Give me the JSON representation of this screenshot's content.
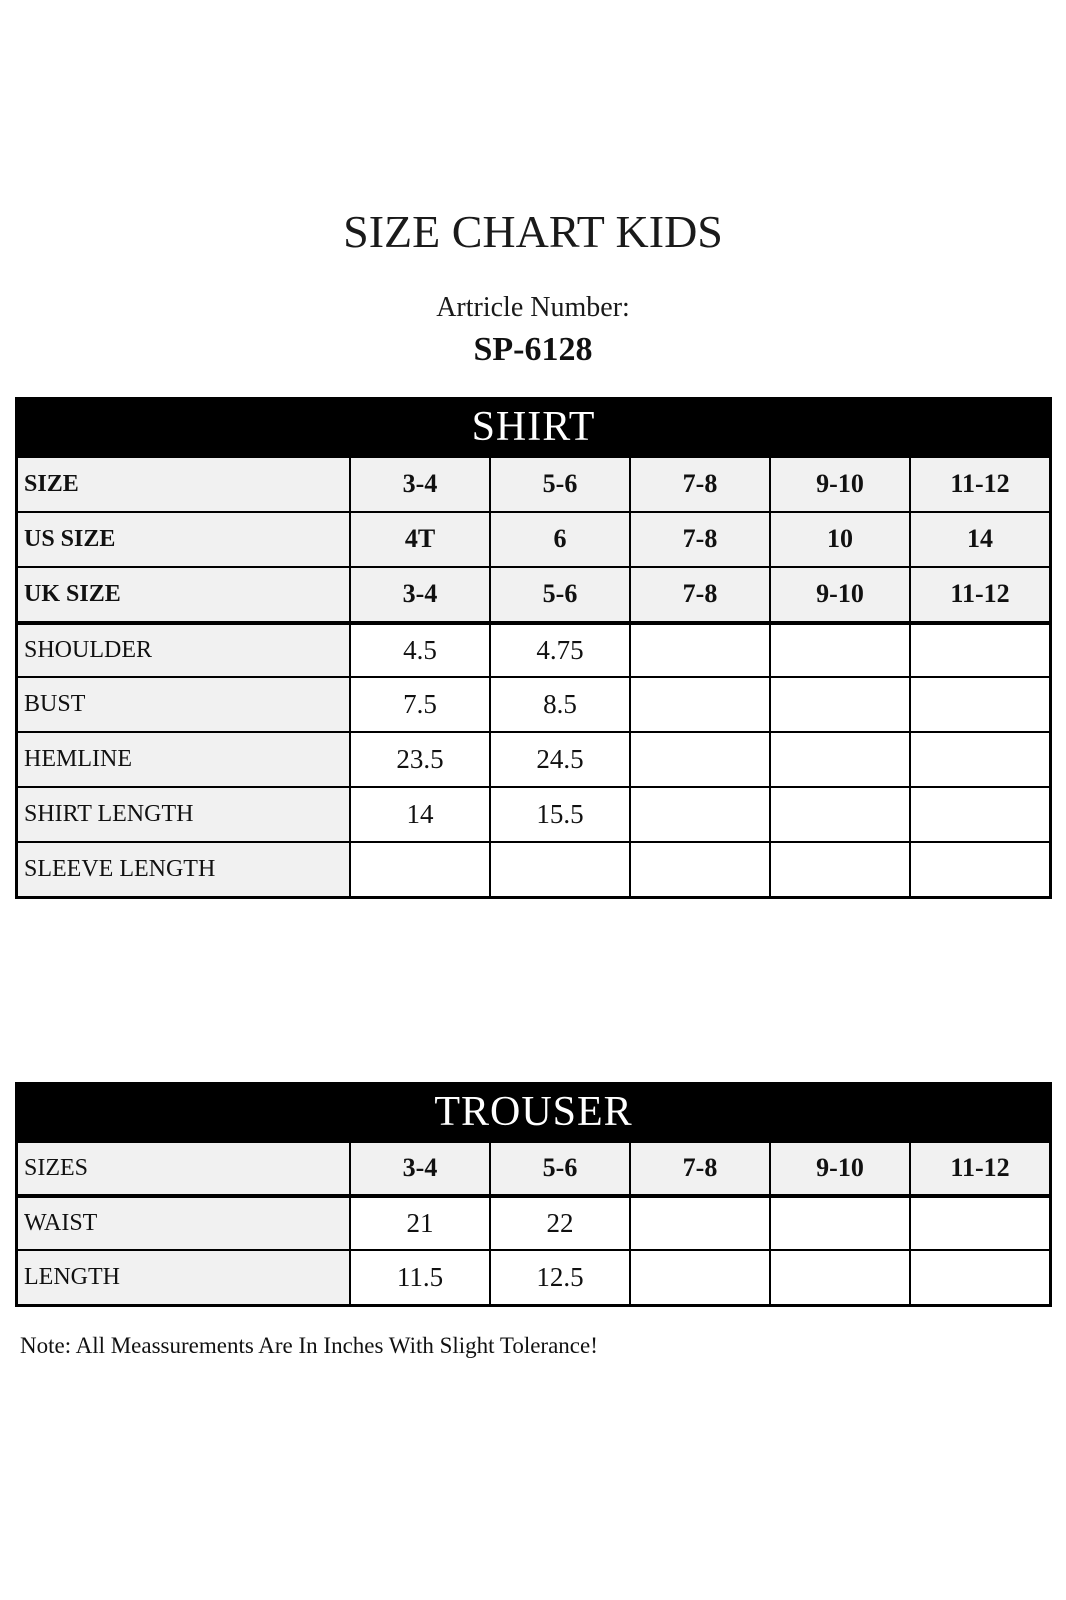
{
  "page": {
    "title": "SIZE CHART KIDS",
    "article_label": "Artricle Number:",
    "article_number": "SP-6128",
    "note": "Note: All Meassurements Are In Inches With Slight Tolerance!"
  },
  "colors": {
    "header_bg": "#000000",
    "header_text": "#ffffff",
    "row_shade": "#f1f1f1",
    "border": "#000000",
    "page_bg": "#ffffff"
  },
  "shirt_table": {
    "title": "SHIRT",
    "rows": [
      {
        "label": "SIZE",
        "values": [
          "3-4",
          "5-6",
          "7-8",
          "9-10",
          "11-12"
        ]
      },
      {
        "label": "US SIZE",
        "values": [
          "4T",
          "6",
          "7-8",
          "10",
          "14"
        ]
      },
      {
        "label": "UK SIZE",
        "values": [
          "3-4",
          "5-6",
          "7-8",
          "9-10",
          "11-12"
        ]
      },
      {
        "label": "SHOULDER",
        "values": [
          "4.5",
          "4.75",
          "",
          "",
          ""
        ]
      },
      {
        "label": "BUST",
        "values": [
          "7.5",
          "8.5",
          "",
          "",
          ""
        ]
      },
      {
        "label": "HEMLINE",
        "values": [
          "23.5",
          "24.5",
          "",
          "",
          ""
        ]
      },
      {
        "label": "SHIRT LENGTH",
        "values": [
          "14",
          "15.5",
          "",
          "",
          ""
        ]
      },
      {
        "label": "SLEEVE LENGTH",
        "values": [
          "",
          "",
          "",
          "",
          ""
        ]
      }
    ]
  },
  "trouser_table": {
    "title": "TROUSER",
    "rows": [
      {
        "label": "SIZES",
        "values": [
          "3-4",
          "5-6",
          "7-8",
          "9-10",
          "11-12"
        ]
      },
      {
        "label": "WAIST",
        "values": [
          "21",
          "22",
          "",
          "",
          ""
        ]
      },
      {
        "label": "LENGTH",
        "values": [
          "11.5",
          "12.5",
          "",
          "",
          ""
        ]
      }
    ]
  }
}
